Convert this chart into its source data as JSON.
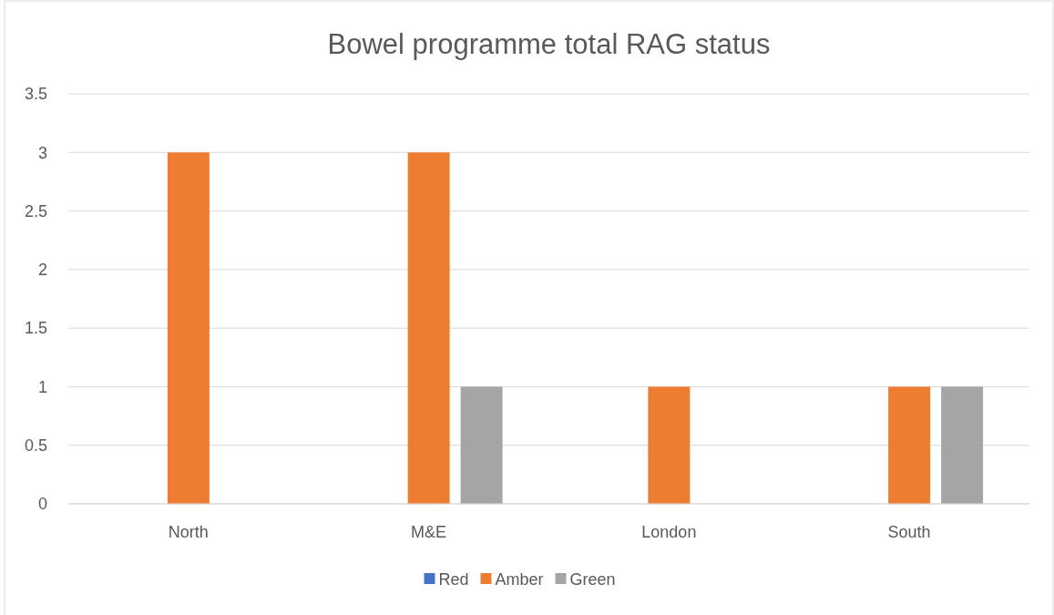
{
  "chart_data": {
    "type": "bar",
    "title": "Bowel programme total RAG status",
    "categories": [
      "North",
      "M&E",
      "London",
      "South"
    ],
    "series": [
      {
        "name": "Red",
        "color": "#4472c4",
        "values": [
          0,
          0,
          0,
          0
        ]
      },
      {
        "name": "Amber",
        "color": "#ed7d31",
        "values": [
          3,
          3,
          1,
          1
        ]
      },
      {
        "name": "Green",
        "color": "#a5a5a5",
        "values": [
          0,
          1,
          0,
          1
        ]
      }
    ],
    "ylim": [
      0,
      3.5
    ],
    "yticks": [
      0,
      0.5,
      1,
      1.5,
      2,
      2.5,
      3,
      3.5
    ],
    "grid": "y",
    "legend": "bottom"
  }
}
